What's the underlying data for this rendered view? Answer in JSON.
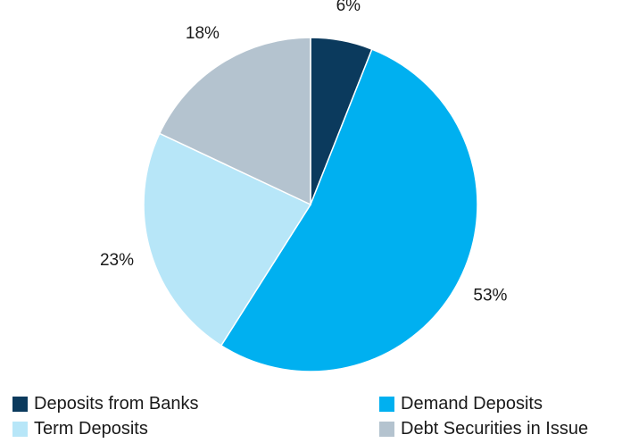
{
  "chart_data": {
    "type": "pie",
    "title": "",
    "start_angle_deg": 0,
    "direction": "clockwise",
    "slices": [
      {
        "name": "Deposits from Banks",
        "value": 6,
        "label": "6%",
        "color": "#0b3a5d"
      },
      {
        "name": "Demand Deposits",
        "value": 53,
        "label": "53%",
        "color": "#00b0f0"
      },
      {
        "name": "Term Deposits",
        "value": 23,
        "label": "23%",
        "color": "#b7e6f8"
      },
      {
        "name": "Debt Securities in Issue",
        "value": 18,
        "label": "18%",
        "color": "#b4c3cf"
      }
    ],
    "legend": {
      "placement": "bottom",
      "items": [
        "Deposits from Banks",
        "Demand Deposits",
        "Term Deposits",
        "Debt Securities in Issue"
      ]
    }
  }
}
